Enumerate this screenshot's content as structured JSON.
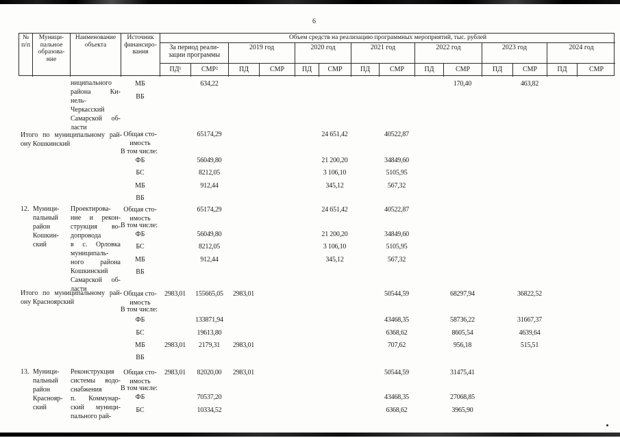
{
  "page_number": "6",
  "colors": {
    "ink": "#1b1b1b",
    "paper": "#fdfdfb"
  },
  "header": {
    "group_title": "Объем средств на реализацию программных мероприятий, тыс. рублей",
    "columns": {
      "num_lines": [
        "№",
        "п/п"
      ],
      "municipal_lines": [
        "Муници-",
        "пальное",
        "образова-",
        "ние"
      ],
      "object_lines": [
        "Наименование",
        "объекта"
      ],
      "source_lines": [
        "Источник",
        "финансиро-",
        "вания"
      ]
    },
    "periods": [
      {
        "label_lines": [
          "За период реали-",
          "зации программы"
        ],
        "pd": "ПД¹",
        "smr": "СМР²"
      },
      {
        "label_lines": [
          "2019 год"
        ],
        "pd": "ПД",
        "smr": "СМР"
      },
      {
        "label_lines": [
          "2020 год"
        ],
        "pd": "ПД",
        "smr": "СМР"
      },
      {
        "label_lines": [
          "2021 год"
        ],
        "pd": "ПД",
        "smr": "СМР"
      },
      {
        "label_lines": [
          "2022 год"
        ],
        "pd": "ПД",
        "smr": "СМР"
      },
      {
        "label_lines": [
          "2023 год"
        ],
        "pd": "ПД",
        "smr": "СМР"
      },
      {
        "label_lines": [
          "2024 год"
        ],
        "pd": "ПД",
        "smr": "СМР"
      }
    ]
  },
  "blocks": [
    {
      "id": "kinel-cherkassky-continuation",
      "object_lines": [
        "ниципального",
        "района Ки-",
        "нель-",
        "Черкасский",
        "Самарской об-",
        "ласти"
      ],
      "fin": [
        {
          "kind": "src",
          "source_lines": [
            "МБ"
          ],
          "values": {
            "smr_period": "634,22",
            "smr_2022": "170,40",
            "smr_2023": "463,82"
          }
        },
        {
          "kind": "src",
          "source_lines": [
            "ВБ"
          ],
          "values": {}
        }
      ]
    },
    {
      "id": "total-koshkinsky",
      "label_lines": [
        "Итого по муниципальному рай-",
        "ону Кошкинский"
      ],
      "fin": [
        {
          "kind": "src",
          "source_lines": [
            "Общая сто-",
            "имость"
          ],
          "values": {
            "smr_period": "65174,29",
            "smr_2020": "24 651,42",
            "smr_2021": "40522,87"
          }
        },
        {
          "kind": "note",
          "text": "В том числе:"
        },
        {
          "kind": "src",
          "source_lines": [
            "ФБ"
          ],
          "values": {
            "smr_period": "56049,80",
            "smr_2020": "21 200,20",
            "smr_2021": "34849,60"
          }
        },
        {
          "kind": "src",
          "source_lines": [
            "БС"
          ],
          "values": {
            "smr_period": "8212,05",
            "smr_2020": "3 106,10",
            "smr_2021": "5105,95"
          }
        },
        {
          "kind": "src",
          "source_lines": [
            "МБ"
          ],
          "values": {
            "smr_period": "912,44",
            "smr_2020": "345,12",
            "smr_2021": "567,32"
          }
        },
        {
          "kind": "src",
          "source_lines": [
            "ВБ"
          ],
          "values": {}
        }
      ]
    },
    {
      "id": "row-12-koshkinsky",
      "num": "12.",
      "municipal_lines": [
        "Муници-",
        "пальный",
        "район",
        "Кошкин-",
        "ский"
      ],
      "object_lines": [
        "Проектирова-",
        "ние и рекон-",
        "струкция во-",
        "допровода",
        "в с. Орловка",
        "муниципаль-",
        "ного района",
        "Кошкинский",
        "Самарской об-",
        "ласти"
      ],
      "fin": [
        {
          "kind": "src",
          "source_lines": [
            "Общая сто-",
            "имость"
          ],
          "values": {
            "smr_period": "65174,29",
            "smr_2020": "24 651,42",
            "smr_2021": "40522,87"
          }
        },
        {
          "kind": "note",
          "text": "В том числе:"
        },
        {
          "kind": "src",
          "source_lines": [
            "ФБ"
          ],
          "values": {
            "smr_period": "56049,80",
            "smr_2020": "21 200,20",
            "smr_2021": "34849,60"
          }
        },
        {
          "kind": "src",
          "source_lines": [
            "БС"
          ],
          "values": {
            "smr_period": "8212,05",
            "smr_2020": "3 106,10",
            "smr_2021": "5105,95"
          }
        },
        {
          "kind": "src",
          "source_lines": [
            "МБ"
          ],
          "values": {
            "smr_period": "912,44",
            "smr_2020": "345,12",
            "smr_2021": "567,32"
          }
        },
        {
          "kind": "src",
          "source_lines": [
            "ВБ"
          ],
          "values": {}
        }
      ]
    },
    {
      "id": "total-krasnoyarsky",
      "label_lines": [
        "Итого по муниципальному рай-",
        "ону Красноярский"
      ],
      "fin": [
        {
          "kind": "src",
          "source_lines": [
            "Общая сто-",
            "имость"
          ],
          "values": {
            "pd_period": "2983,01",
            "smr_period": "155665,05",
            "pd_2019": "2983,01",
            "smr_2021": "50544,59",
            "smr_2022": "68297,94",
            "smr_2023": "36822,52"
          }
        },
        {
          "kind": "note",
          "text": "В том числе:"
        },
        {
          "kind": "src",
          "source_lines": [
            "ФБ"
          ],
          "values": {
            "smr_period": "133871,94",
            "smr_2021": "43468,35",
            "smr_2022": "58736,22",
            "smr_2023": "31667,37"
          }
        },
        {
          "kind": "src",
          "source_lines": [
            "БС"
          ],
          "values": {
            "smr_period": "19613,80",
            "smr_2021": "6368,62",
            "smr_2022": "8605,54",
            "smr_2023": "4639,64"
          }
        },
        {
          "kind": "src",
          "source_lines": [
            "МБ"
          ],
          "values": {
            "pd_period": "2983,01",
            "smr_period": "2179,31",
            "pd_2019": "2983,01",
            "smr_2021": "707,62",
            "smr_2022": "956,18",
            "smr_2023": "515,51"
          }
        },
        {
          "kind": "src",
          "source_lines": [
            "ВБ"
          ],
          "values": {}
        }
      ]
    },
    {
      "id": "row-13-krasnoyarsky",
      "num": "13.",
      "municipal_lines": [
        "Муници-",
        "пальный",
        "район",
        "Краснояр-",
        "ский"
      ],
      "object_lines": [
        "Реконструкция",
        "системы водо-",
        "снабжения",
        "п. Коммунар-",
        "ский муници-",
        "пального рай-"
      ],
      "fin": [
        {
          "kind": "src",
          "source_lines": [
            "Общая сто-",
            "имость"
          ],
          "values": {
            "pd_period": "2983,01",
            "smr_period": "82020,00",
            "pd_2019": "2983,01",
            "smr_2021": "50544,59",
            "smr_2022": "31475,41"
          }
        },
        {
          "kind": "note",
          "text": "В том числе:"
        },
        {
          "kind": "src",
          "source_lines": [
            "ФБ"
          ],
          "values": {
            "smr_period": "70537,20",
            "smr_2021": "43468,35",
            "smr_2022": "27068,85"
          }
        },
        {
          "kind": "src",
          "source_lines": [
            "БС"
          ],
          "values": {
            "smr_period": "10334,52",
            "smr_2021": "6368,62",
            "smr_2022": "3965,90"
          }
        }
      ]
    }
  ]
}
